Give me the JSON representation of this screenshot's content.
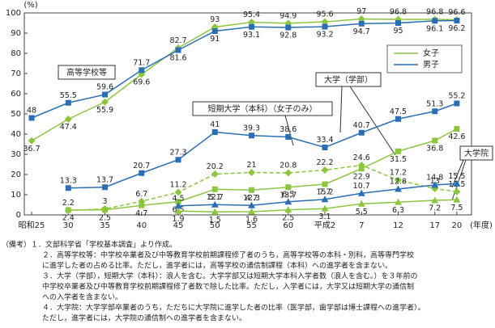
{
  "chart_data": {
    "type": "line",
    "ylabel": "(%)",
    "xlabel": "(年度)",
    "x": [
      1950,
      1955,
      1960,
      1965,
      1970,
      1975,
      1980,
      1985,
      1990,
      1995,
      2000,
      2005,
      2008
    ],
    "xlim": [
      1949,
      2010
    ],
    "xticks": [
      {
        "value": 1950,
        "label": "昭和25"
      },
      {
        "value": 1955,
        "label": "30"
      },
      {
        "value": 1960,
        "label": "35"
      },
      {
        "value": 1965,
        "label": "40"
      },
      {
        "value": 1970,
        "label": "45"
      },
      {
        "value": 1975,
        "label": "50"
      },
      {
        "value": 1980,
        "label": "55"
      },
      {
        "value": 1985,
        "label": "60"
      },
      {
        "value": 1990,
        "label": "平成2"
      },
      {
        "value": 1995,
        "label": "7"
      },
      {
        "value": 2000,
        "label": "12"
      },
      {
        "value": 2005,
        "label": "17"
      },
      {
        "value": 2008,
        "label": "20"
      }
    ],
    "ylim": [
      0,
      100
    ],
    "yticks": [
      0,
      10,
      20,
      30,
      40,
      50,
      60,
      70,
      80,
      90,
      100
    ],
    "series": [
      {
        "name": "女子",
        "color": "#8cc63f",
        "marker": "diamond",
        "values": [
          36.7,
          47.4,
          55.9,
          69.6,
          82.7,
          93.0,
          95.4,
          94.9,
          95.6,
          97.0,
          96.8,
          96.8,
          96.6
        ]
      },
      {
        "name": "男子",
        "color": "#2a6fb5",
        "marker": "square",
        "values": [
          48.0,
          55.5,
          59.6,
          71.7,
          81.6,
          91.0,
          93.1,
          92.8,
          93.2,
          94.7,
          95.0,
          96.1,
          96.2
        ]
      },
      {
        "name": "女子",
        "color": "#8cc63f",
        "marker": "square",
        "values": [
          null,
          2.4,
          2.5,
          4.7,
          6.5,
          12.7,
          12.3,
          13.7,
          15.2,
          22.9,
          31.5,
          36.8,
          42.6
        ]
      },
      {
        "name": "男子",
        "color": "#2a6fb5",
        "marker": "square",
        "values": [
          null,
          13.3,
          13.7,
          20.7,
          27.3,
          41.0,
          39.3,
          38.6,
          33.4,
          40.7,
          47.5,
          51.3,
          55.2
        ]
      },
      {
        "name": "女子",
        "color": "#8cc63f",
        "marker": "diamond",
        "dashed": true,
        "values": [
          null,
          2.2,
          3.0,
          6.7,
          11.2,
          20.2,
          21.0,
          20.8,
          22.2,
          24.6,
          17.2,
          13.0,
          11.5
        ]
      },
      {
        "name": "女子",
        "color": "#8cc63f",
        "marker": "triangle",
        "values": [
          null,
          null,
          null,
          null,
          1.9,
          1.5,
          1.6,
          2.5,
          3.1,
          5.5,
          6.3,
          7.2,
          7.5
        ]
      },
      {
        "name": "男子",
        "color": "#2a6fb5",
        "marker": "triangle",
        "values": [
          null,
          null,
          null,
          null,
          4.5,
          5.1,
          4.7,
          6.5,
          7.7,
          10.7,
          12.8,
          14.8,
          15.5
        ]
      }
    ],
    "annotations": [
      "高等学校等",
      "大学（学部）",
      "短期大学（本科）（女子のみ）",
      "大学院"
    ],
    "notes": [
      "（備考）１．文部科学省「学校基本調査」より作成。",
      "２．高等学校等：中学校卒業者及び中等教育学校前期課程修了者のうち，高等学校等の本科・別科，高等専門学校",
      "に進学した者の占める比率。ただし，進学者には，高等学校の通信制課程（本科）への進学者を含まない。",
      "３．大学（学部），短期大学（本科）：浪人を含む。大学学部又は短期大学本科入学者数（浪人を含む。）を３年前の",
      "中学校卒業者及び中等教育学校前期課程修了者数で除した比率。ただし，入学者には，大学又は短期大学の通信制",
      "への入学者を含まない。",
      "４．大学院：大学学部卒業者のうち，ただちに大学院に進学した者の比率（医学部，歯学部は博士課程への進学者）。",
      "ただし，進学者には，大学院の通信制への進学者を含まない。"
    ]
  }
}
